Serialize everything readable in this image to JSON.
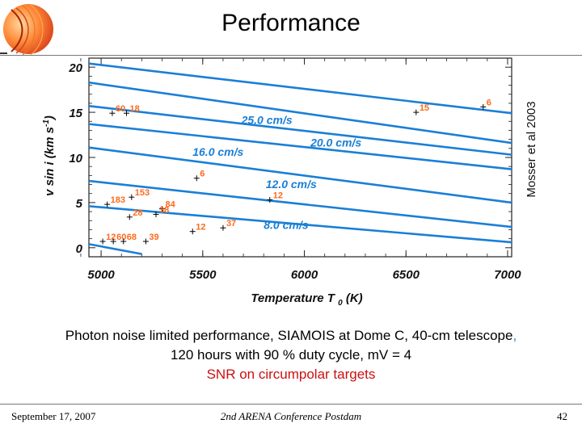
{
  "slide": {
    "title": "Performance",
    "caption_line1": "Photon noise limited performance, SIAMOIS at Dome C, 40-cm telescope",
    "caption_line1_comma": ",",
    "caption_line2": "120 hours with 90 % duty cycle, mV = 4",
    "caption_line3": "SNR on circumpolar targets",
    "footer_date": "September 17, 2007",
    "footer_conference": "2nd ARENA Conference Postdam",
    "footer_page": "42",
    "side_note": "Mosser et al 2003"
  },
  "colors": {
    "curve": "#1a7fd6",
    "label_orange": "#ff6a1a",
    "marker": "#000000",
    "caption_red": "#cc1010"
  },
  "chart_data": {
    "type": "line",
    "xlabel": "Temperature T",
    "xlabel_sub": "0",
    "xlabel_unit": "(K)",
    "ylabel": "v sin i  (km s",
    "ylabel_sup": "-1",
    "ylabel_close": ")",
    "xlim": [
      4940,
      7020
    ],
    "ylim": [
      -1,
      21
    ],
    "xticks": [
      5000,
      5500,
      6000,
      6500,
      7000
    ],
    "yticks": [
      0,
      5,
      10,
      15,
      20
    ],
    "series": [
      {
        "name": "",
        "x": [
          4940,
          7020
        ],
        "y": [
          20.4,
          14.9
        ]
      },
      {
        "name": "25.0 cm/s",
        "x": [
          4940,
          7020
        ],
        "y": [
          18.3,
          11.6
        ]
      },
      {
        "name": "20.0 cm/s",
        "x": [
          4940,
          7020
        ],
        "y": [
          15.7,
          10.3
        ]
      },
      {
        "name": "16.0 cm/s",
        "x": [
          4940,
          7020
        ],
        "y": [
          13.7,
          8.7
        ]
      },
      {
        "name": "12.0 cm/s",
        "x": [
          4940,
          7020
        ],
        "y": [
          11.1,
          5.0
        ]
      },
      {
        "name": "",
        "x": [
          4940,
          7020
        ],
        "y": [
          7.4,
          2.3
        ]
      },
      {
        "name": "8.0 cm/s",
        "x": [
          4940,
          7020
        ],
        "y": [
          4.6,
          0.6
        ]
      },
      {
        "name": "",
        "x": [
          4940,
          5200
        ],
        "y": [
          0.4,
          -0.7
        ]
      }
    ],
    "curve_labels": [
      {
        "text": "25.0 cm/s",
        "x": 5690,
        "y": 13.7
      },
      {
        "text": "20.0 cm/s",
        "x": 6030,
        "y": 11.2
      },
      {
        "text": "16.0 cm/s",
        "x": 5450,
        "y": 10.2
      },
      {
        "text": "12.0 cm/s",
        "x": 5810,
        "y": 6.6
      },
      {
        "text": "8.0 cm/s",
        "x": 5800,
        "y": 2.1
      }
    ],
    "stars": [
      {
        "label": "6",
        "x": 6880,
        "y": 15.6
      },
      {
        "label": "15",
        "x": 6550,
        "y": 15.0
      },
      {
        "label": "60",
        "x": 5055,
        "y": 14.9
      },
      {
        "label": "18",
        "x": 5125,
        "y": 14.9
      },
      {
        "label": "6",
        "x": 5470,
        "y": 7.7
      },
      {
        "label": "153",
        "x": 5150,
        "y": 5.6
      },
      {
        "label": "12",
        "x": 5830,
        "y": 5.3
      },
      {
        "label": "183",
        "x": 5030,
        "y": 4.8
      },
      {
        "label": "84",
        "x": 5300,
        "y": 4.3
      },
      {
        "label": "38",
        "x": 5270,
        "y": 3.7
      },
      {
        "label": "28",
        "x": 5140,
        "y": 3.4
      },
      {
        "label": "37",
        "x": 5600,
        "y": 2.2
      },
      {
        "label": "12",
        "x": 5450,
        "y": 1.8
      },
      {
        "label": "12",
        "x": 5008,
        "y": 0.7
      },
      {
        "label": "60",
        "x": 5060,
        "y": 0.7
      },
      {
        "label": "68",
        "x": 5110,
        "y": 0.7
      },
      {
        "label": "39",
        "x": 5220,
        "y": 0.7
      }
    ]
  }
}
